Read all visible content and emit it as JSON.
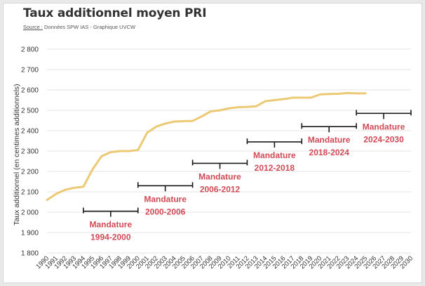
{
  "header": {
    "title": "Taux additionnel moyen PRI",
    "source_label": "Source :",
    "source_text": " Données SPW IAS - Graphique UVCW"
  },
  "chart_data": {
    "type": "line",
    "title": "Taux additionnel moyen PRI",
    "xlabel": "",
    "ylabel": "Taux additionnel (en centimes additionnels)",
    "ylim": [
      1800,
      2800
    ],
    "yticks": [
      1800,
      1900,
      2000,
      2100,
      2200,
      2300,
      2400,
      2500,
      2600,
      2700,
      2800
    ],
    "ytick_labels": [
      "1 800",
      "1 900",
      "2 000",
      "2 100",
      "2 200",
      "2 300",
      "2 400",
      "2 500",
      "2 600",
      "2 700",
      "2 800"
    ],
    "xlim": [
      1990,
      2030
    ],
    "categories": [
      "1990",
      "1991",
      "1992",
      "1993",
      "1994",
      "1995",
      "1996",
      "1997",
      "1998",
      "1999",
      "2000",
      "2001",
      "2002",
      "2003",
      "2004",
      "2005",
      "2006",
      "2007",
      "2008",
      "2009",
      "2010",
      "2011",
      "2012",
      "2013",
      "2014",
      "2015",
      "2016",
      "2017",
      "2018",
      "2019",
      "2020",
      "2021",
      "2022",
      "2023",
      "2024",
      "2025",
      "2026",
      "2027",
      "2028",
      "2029",
      "2030"
    ],
    "grid": true,
    "series": [
      {
        "name": "Taux additionnel moyen PRI",
        "color": "#ecc974",
        "x": [
          1990,
          1991,
          1992,
          1993,
          1994,
          1995,
          1996,
          1997,
          1998,
          1999,
          2000,
          2001,
          2002,
          2003,
          2004,
          2005,
          2006,
          2007,
          2008,
          2009,
          2010,
          2011,
          2012,
          2013,
          2014,
          2015,
          2016,
          2017,
          2018,
          2019,
          2020,
          2021,
          2022,
          2023,
          2024,
          2025
        ],
        "values": [
          2060,
          2090,
          2110,
          2120,
          2125,
          2210,
          2275,
          2295,
          2300,
          2300,
          2305,
          2390,
          2420,
          2435,
          2445,
          2447,
          2448,
          2470,
          2495,
          2500,
          2510,
          2515,
          2517,
          2520,
          2545,
          2550,
          2555,
          2562,
          2562,
          2562,
          2578,
          2580,
          2581,
          2585,
          2583,
          2583
        ]
      }
    ],
    "annotations": [
      {
        "line1": "Mandature",
        "line2": "1994-2000",
        "start": 1994,
        "end": 2000,
        "y": 2005
      },
      {
        "line1": "Mandature",
        "line2": "2000-2006",
        "start": 2000,
        "end": 2006,
        "y": 2130
      },
      {
        "line1": "Mandature",
        "line2": "2006-2012",
        "start": 2006,
        "end": 2012,
        "y": 2240
      },
      {
        "line1": "Mandature",
        "line2": "2012-2018",
        "start": 2012,
        "end": 2018,
        "y": 2345
      },
      {
        "line1": "Mandature",
        "line2": "2018-2024",
        "start": 2018,
        "end": 2024,
        "y": 2420
      },
      {
        "line1": "Mandature",
        "line2": "2024-2030",
        "start": 2024,
        "end": 2030,
        "y": 2485
      }
    ],
    "colors": {
      "line": "#ecc974",
      "annotation_text": "#d14a56",
      "bracket": "#1a1a1a",
      "grid": "#e4e4e4",
      "axis_text": "#333333"
    }
  }
}
